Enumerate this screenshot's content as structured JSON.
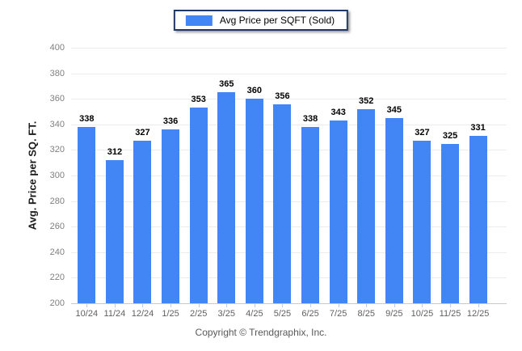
{
  "legend": {
    "label": "Avg Price per SQFT (Sold)"
  },
  "footer": {
    "copyright": "Copyright © Trendgraphix, Inc."
  },
  "colors": {
    "bar": "#4285f4",
    "legend_border": "#1f3864",
    "grid": "#ececec",
    "axis_line": "#c9c9c9",
    "xtick_mark": "#b8cfee",
    "value_label": "#000000",
    "x_label_text": "#606060",
    "y_label_text": "#808080"
  },
  "chart_data": {
    "type": "bar",
    "title": "",
    "legend": "Avg Price per SQFT (Sold)",
    "legend_position": "top-center",
    "categories": [
      "10/24",
      "11/24",
      "12/24",
      "1/25",
      "2/25",
      "3/25",
      "4/25",
      "5/25",
      "6/25",
      "7/25",
      "8/25",
      "9/25",
      "10/25",
      "11/25",
      "12/25"
    ],
    "values": [
      338,
      312,
      327,
      336,
      353,
      365,
      360,
      356,
      338,
      343,
      352,
      345,
      327,
      325,
      331
    ],
    "xlabel": "",
    "ylabel": "Avg. Price per SQ. FT.",
    "ylim": [
      200,
      400
    ],
    "yticks": [
      200,
      220,
      240,
      260,
      280,
      300,
      320,
      340,
      360,
      380,
      400
    ],
    "grid": true
  }
}
